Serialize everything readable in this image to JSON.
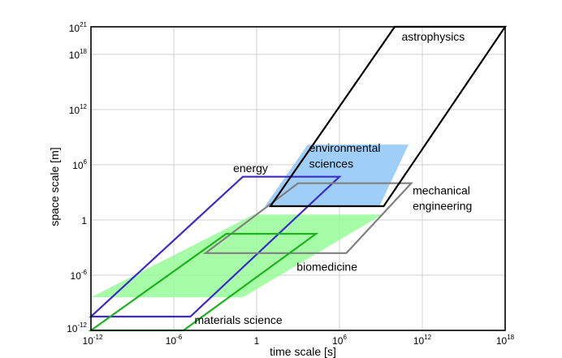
{
  "chart_data": {
    "type": "area",
    "xlabel": "time scale [s]",
    "ylabel": "space scale [m]",
    "x_scale": "log10",
    "y_scale": "log10",
    "xlim": [
      -12,
      18
    ],
    "ylim": [
      -12,
      21
    ],
    "grid": true,
    "x_ticks": [
      {
        "v": -12,
        "base": "10",
        "exp": "-12"
      },
      {
        "v": -6,
        "base": "10",
        "exp": "-6"
      },
      {
        "v": 0,
        "base": "1",
        "exp": ""
      },
      {
        "v": 6,
        "base": "10",
        "exp": "6"
      },
      {
        "v": 12,
        "base": "10",
        "exp": "12"
      },
      {
        "v": 18,
        "base": "10",
        "exp": "18"
      }
    ],
    "y_ticks": [
      {
        "v": -12,
        "base": "10",
        "exp": "-12"
      },
      {
        "v": -6,
        "base": "10",
        "exp": "-6"
      },
      {
        "v": 0,
        "base": "1",
        "exp": ""
      },
      {
        "v": 6,
        "base": "10",
        "exp": "6"
      },
      {
        "v": 12,
        "base": "10",
        "exp": "12"
      },
      {
        "v": 18,
        "base": "10",
        "exp": "18"
      },
      {
        "v": 21,
        "base": "10",
        "exp": "21"
      }
    ],
    "regions": [
      {
        "name": "environmental sciences",
        "style": "fill",
        "color": "#9fcff8",
        "points": [
          [
            3.7,
            8.2
          ],
          [
            11.0,
            8.2
          ],
          [
            8.9,
            1.5
          ],
          [
            0.6,
            1.5
          ]
        ]
      },
      {
        "name": "biomedicine",
        "style": "fill",
        "color": "#98fb98",
        "points": [
          [
            -0.2,
            0.6
          ],
          [
            9.1,
            0.6
          ],
          [
            -1.0,
            -8.4
          ],
          [
            -12.0,
            -8.4
          ]
        ]
      },
      {
        "name": "energy",
        "style": "outline",
        "color": "#3a2bcf",
        "points": [
          [
            -12.0,
            -10.5
          ],
          [
            -4.8,
            -10.5
          ],
          [
            6.0,
            4.7
          ],
          [
            -1.0,
            4.7
          ]
        ]
      },
      {
        "name": "mechanical engineering",
        "style": "outline",
        "color": "#808080",
        "points": [
          [
            -3.7,
            -3.6
          ],
          [
            6.5,
            -3.6
          ],
          [
            11.2,
            4.0
          ],
          [
            3.0,
            4.0
          ]
        ]
      },
      {
        "name": "materials science",
        "style": "outline",
        "color": "#1db31d",
        "points": [
          [
            -12.0,
            -12.0
          ],
          [
            -5.3,
            -12.0
          ],
          [
            4.3,
            -1.5
          ],
          [
            -2.2,
            -1.5
          ]
        ]
      },
      {
        "name": "astrophysics",
        "style": "outline",
        "color": "#000000",
        "points": [
          [
            1.0,
            1.5
          ],
          [
            9.2,
            1.5
          ],
          [
            18.0,
            21.0
          ],
          [
            10.0,
            21.0
          ]
        ]
      }
    ],
    "annotations": [
      {
        "text": "astrophysics",
        "anchor": [
          10.5,
          19.5
        ]
      },
      {
        "text": "environmental",
        "anchor": [
          3.8,
          7.4
        ]
      },
      {
        "text": "sciences",
        "anchor": [
          3.8,
          5.7
        ]
      },
      {
        "text": "energy",
        "anchor": [
          -1.7,
          5.2
        ]
      },
      {
        "text": "mechanical",
        "anchor": [
          11.3,
          2.8
        ]
      },
      {
        "text": "engineering",
        "anchor": [
          11.3,
          1.1
        ]
      },
      {
        "text": "biomedicine",
        "anchor": [
          2.9,
          -5.5
        ]
      },
      {
        "text": "materials science",
        "anchor": [
          -4.5,
          -11.3
        ]
      }
    ]
  }
}
